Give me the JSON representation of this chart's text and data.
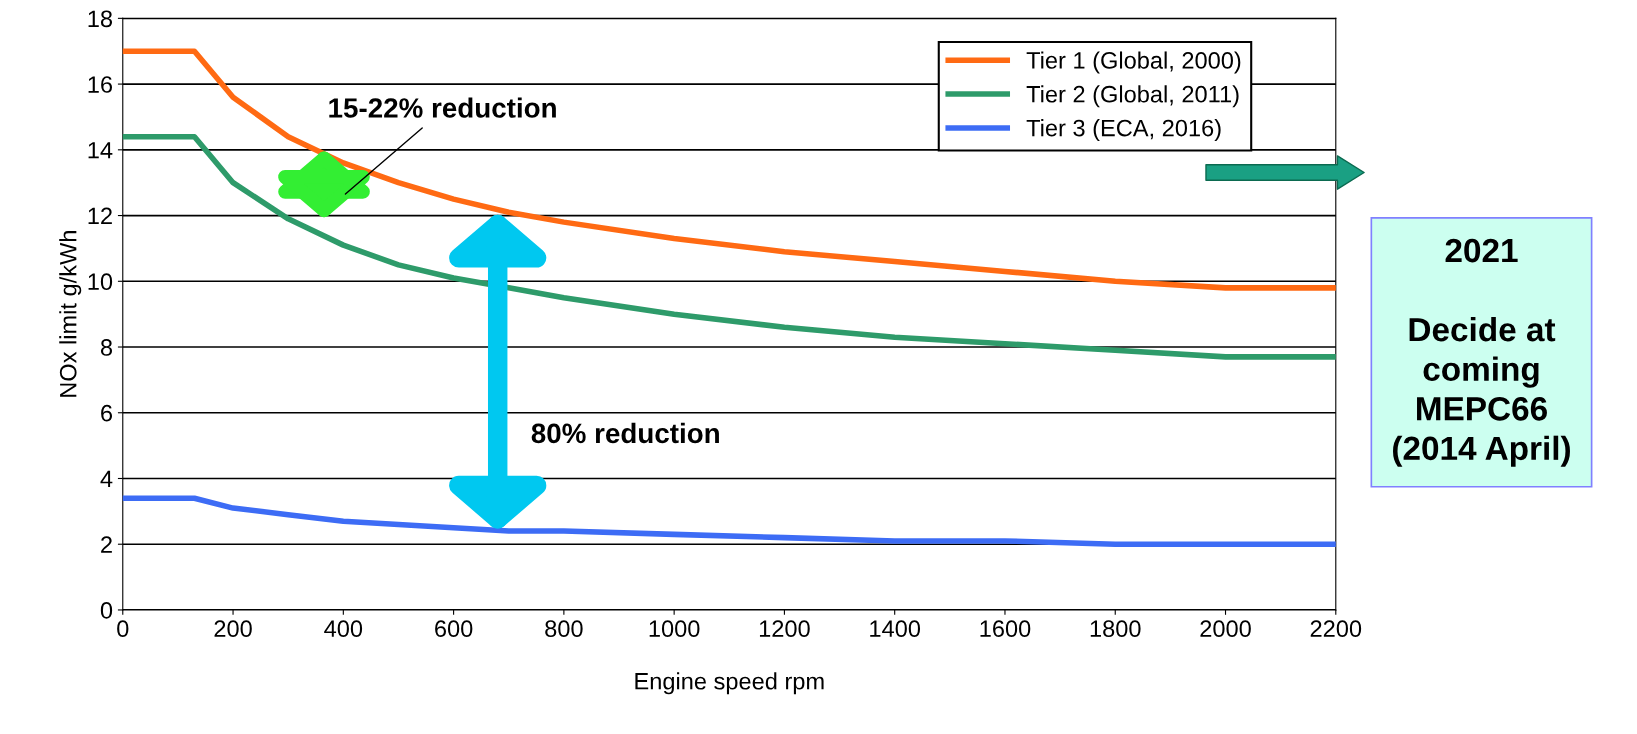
{
  "chart_data": {
    "type": "line",
    "xlabel": "Engine speed rpm",
    "ylabel": "NOx limit g/kWh",
    "x": [
      0,
      130,
      200,
      300,
      400,
      500,
      600,
      700,
      800,
      1000,
      1200,
      1400,
      1600,
      1800,
      2000,
      2200
    ],
    "series": [
      {
        "name": "Tier 1 (Global, 2000)",
        "color": "#ff6a13",
        "values": [
          17.0,
          17.0,
          15.6,
          14.4,
          13.6,
          13.0,
          12.5,
          12.1,
          11.8,
          11.3,
          10.9,
          10.6,
          10.3,
          10.0,
          9.8,
          9.8
        ]
      },
      {
        "name": "Tier 2 (Global, 2011)",
        "color": "#2e9b6a",
        "values": [
          14.4,
          14.4,
          13.0,
          11.9,
          11.1,
          10.5,
          10.1,
          9.8,
          9.5,
          9.0,
          8.6,
          8.3,
          8.1,
          7.9,
          7.7,
          7.7
        ]
      },
      {
        "name": "Tier 3 (ECA, 2016)",
        "color": "#3d6cf5",
        "values": [
          3.4,
          3.4,
          3.1,
          2.9,
          2.7,
          2.6,
          2.5,
          2.4,
          2.4,
          2.3,
          2.2,
          2.1,
          2.1,
          2.0,
          2.0,
          2.0
        ]
      }
    ],
    "xlim": [
      0,
      2200
    ],
    "xticks": [
      0,
      200,
      400,
      600,
      800,
      1000,
      1200,
      1400,
      1600,
      1800,
      2000,
      2200
    ],
    "ylim": [
      0,
      18
    ],
    "yticks": [
      0,
      2,
      4,
      6,
      8,
      10,
      12,
      14,
      16,
      18
    ],
    "grid": "y",
    "legend": "top right",
    "marker": "none",
    "line_style": "solid",
    "annotations": [
      "15-22% reduction",
      "80% reduction",
      "2021\n\nDecide at\ncoming\nMEPC66\n(2014 April)"
    ]
  }
}
